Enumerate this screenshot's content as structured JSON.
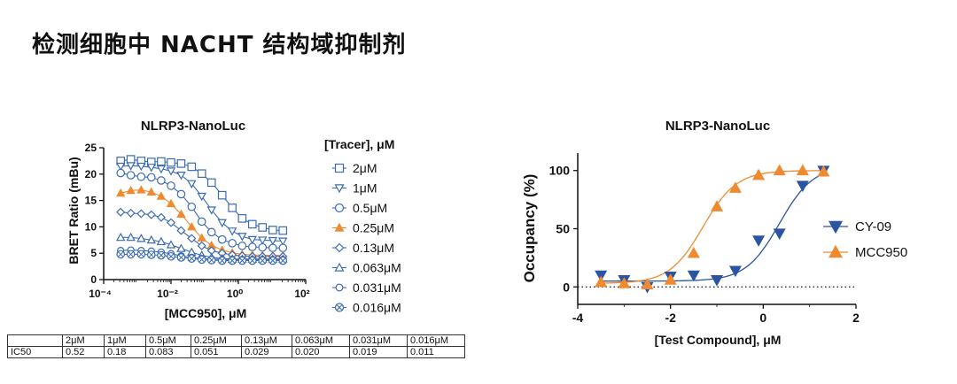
{
  "page": {
    "title": "检测细胞中 NACHT 结构域抑制剂"
  },
  "colors": {
    "blue": "#3B6BB5",
    "orange": "#F08A30",
    "dark_blue": "#2B55A0"
  },
  "chart_data": [
    {
      "type": "line",
      "title": "NLRP3-NanoLuc",
      "xlabel": "[MCC950], μM",
      "ylabel": "BRET Ratio (mBu)",
      "x_scale": "log",
      "xlim": [
        0.0001,
        100
      ],
      "ylim": [
        0,
        25
      ],
      "x_ticks": [
        "10⁻⁴",
        "10⁻²",
        "10⁰",
        "10²"
      ],
      "y_ticks": [
        "0",
        "5",
        "10",
        "15",
        "20",
        "25"
      ],
      "legend_title": "[Tracer], μM",
      "legend_position": "right",
      "x": [
        0.00032,
        0.00064,
        0.0013,
        0.0026,
        0.0051,
        0.01,
        0.02,
        0.041,
        0.082,
        0.16,
        0.33,
        0.66,
        1.3,
        2.6,
        5.2,
        10.5,
        21
      ],
      "series": [
        {
          "name": "2μM",
          "marker": "square",
          "color": "#3B6BB5",
          "values": [
            22.5,
            22.8,
            22.5,
            22.3,
            22.4,
            22.2,
            22.0,
            21.4,
            20.1,
            18.4,
            16.0,
            13.6,
            11.6,
            10.5,
            9.9,
            9.4,
            9.3
          ]
        },
        {
          "name": "1μM",
          "marker": "triangle-down",
          "color": "#3B6BB5",
          "values": [
            21.5,
            21.6,
            21.5,
            21.3,
            21.0,
            20.6,
            19.8,
            18.2,
            15.8,
            13.2,
            10.8,
            9.2,
            8.2,
            7.6,
            7.5,
            7.4,
            7.3
          ]
        },
        {
          "name": "0.5μM",
          "marker": "circle",
          "color": "#3B6BB5",
          "values": [
            20.2,
            19.8,
            19.5,
            19.4,
            18.8,
            17.8,
            16.2,
            13.8,
            11.0,
            9.0,
            7.6,
            6.9,
            6.4,
            6.2,
            6.1,
            6.0,
            6.0
          ]
        },
        {
          "name": "0.25μM",
          "marker": "triangle-up",
          "color": "#F08A30",
          "values": [
            16.4,
            16.9,
            17.0,
            16.6,
            15.8,
            14.4,
            12.4,
            10.0,
            7.9,
            6.5,
            5.6,
            5.1,
            4.8,
            4.7,
            4.6,
            4.6,
            4.6
          ]
        },
        {
          "name": "0.13μM",
          "marker": "diamond",
          "color": "#3B6BB5",
          "values": [
            12.8,
            12.6,
            12.5,
            12.3,
            11.8,
            10.8,
            9.3,
            7.8,
            6.4,
            5.5,
            5.0,
            4.7,
            4.5,
            4.4,
            4.4,
            4.4,
            4.4
          ]
        },
        {
          "name": "0.063μM",
          "marker": "triangle-up-open",
          "color": "#3B6BB5",
          "values": [
            8.0,
            8.0,
            7.8,
            7.5,
            7.2,
            6.6,
            5.9,
            5.2,
            4.6,
            4.2,
            4.0,
            3.9,
            3.9,
            3.9,
            3.9,
            3.9,
            3.9
          ]
        },
        {
          "name": "0.031μM",
          "marker": "circle-small",
          "color": "#3B6BB5",
          "values": [
            5.5,
            5.6,
            5.5,
            5.4,
            5.2,
            4.9,
            4.5,
            4.2,
            4.0,
            3.9,
            3.8,
            3.8,
            3.8,
            3.8,
            3.8,
            3.8,
            3.8
          ]
        },
        {
          "name": "0.016μM",
          "marker": "circle-x",
          "color": "#3B6BB5",
          "values": [
            4.8,
            4.8,
            4.8,
            4.7,
            4.6,
            4.4,
            4.2,
            4.0,
            3.8,
            3.7,
            3.6,
            3.6,
            3.6,
            3.6,
            3.6,
            3.6,
            3.6
          ]
        }
      ]
    },
    {
      "type": "scatter",
      "title": "NLRP3-NanoLuc",
      "xlabel": "[Test Compound], μM",
      "ylabel": "Occupancy (%)",
      "xlim": [
        -4,
        2
      ],
      "ylim": [
        -15,
        115
      ],
      "x_ticks": [
        "-4",
        "-2",
        "0",
        "2"
      ],
      "y_ticks": [
        "0",
        "50",
        "100"
      ],
      "reference_line": {
        "y": 0,
        "style": "dotted"
      },
      "legend_position": "right",
      "series": [
        {
          "name": "CY-09",
          "marker": "triangle-down",
          "color": "#2B55A0",
          "x": [
            -3.5,
            -3.0,
            -2.5,
            -2.0,
            -1.5,
            -1.0,
            -0.6,
            -0.1,
            0.35,
            0.85,
            1.3
          ],
          "y": [
            10,
            6,
            0,
            9,
            10,
            6,
            14,
            40,
            46,
            87,
            100
          ]
        },
        {
          "name": "MCC950",
          "marker": "triangle-up",
          "color": "#F08A30",
          "x": [
            -3.5,
            -3.0,
            -2.5,
            -2.0,
            -1.5,
            -1.0,
            -0.6,
            -0.1,
            0.35,
            0.85,
            1.3
          ],
          "y": [
            4,
            3,
            2,
            6,
            29,
            69,
            85,
            96,
            100,
            100,
            99
          ]
        }
      ]
    }
  ],
  "ic50_table": {
    "headers": [
      "",
      "2μM",
      "1μM",
      "0.5μM",
      "0.25μM",
      "0.13μM",
      "0.063μM",
      "0.031μM",
      "0.016μM"
    ],
    "row_label": "IC50",
    "values": [
      "0.52",
      "0.18",
      "0.083",
      "0.051",
      "0.029",
      "0.020",
      "0.019",
      "0.011"
    ]
  }
}
